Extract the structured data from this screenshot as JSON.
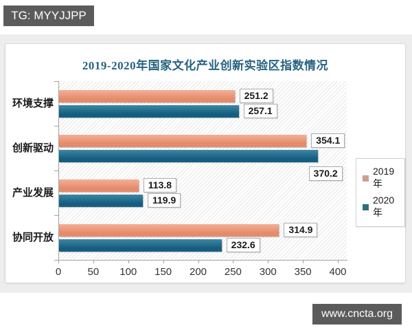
{
  "badges": {
    "top_left": "TG: MYYJJPP",
    "bottom_right": "www.cncta.org"
  },
  "colors": {
    "title": "#266380",
    "badge_background": "#5b5b5b",
    "series_2019": "#E58B6C",
    "series_2020": "#17628A",
    "legend_swatch_2019": "#CE9E8B",
    "legend_swatch_2020": "#2F6F82"
  },
  "chart_data": {
    "type": "bar",
    "orientation": "horizontal",
    "title": "2019-2020年国家文化产业创新实验区指数情况",
    "categories": [
      "环境支撑",
      "创新驱动",
      "产业发展",
      "协同开放"
    ],
    "series": [
      {
        "name": "2019年",
        "color": "#E58B6C",
        "color_light": "#F3B095",
        "legend_swatch": "#CE9E8B",
        "values": [
          251.2,
          354.1,
          113.8,
          314.9
        ],
        "label_placement": [
          "right",
          "right",
          "right",
          "right"
        ]
      },
      {
        "name": "2020年",
        "color": "#155E81",
        "color_light": "#3F87A3",
        "legend_swatch": "#2F6F82",
        "values": [
          257.1,
          370.2,
          119.9,
          232.6
        ],
        "label_placement": [
          "right",
          "below",
          "right",
          "right"
        ]
      }
    ],
    "xlim": [
      0,
      400
    ],
    "xticks": [
      0,
      50,
      100,
      150,
      200,
      250,
      300,
      350,
      400
    ],
    "data_labels": true,
    "legend_position": "right",
    "grid": false
  }
}
